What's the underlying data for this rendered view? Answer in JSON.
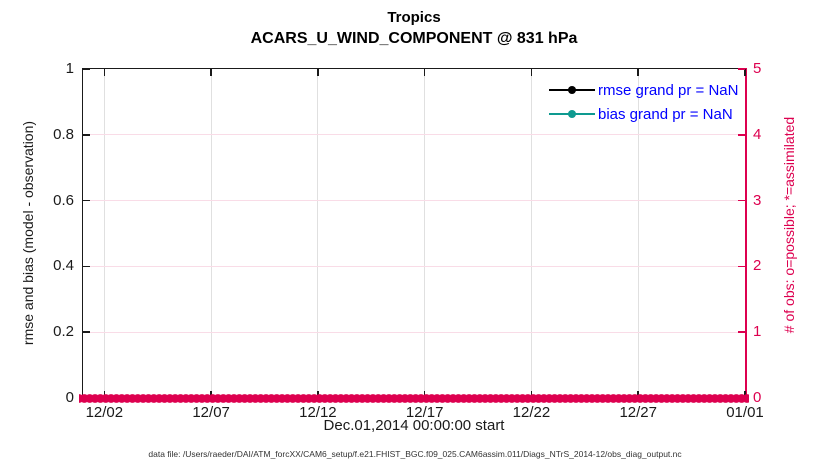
{
  "figure": {
    "title": "Tropics",
    "subtitle": "ACARS_U_WIND_COMPONENT @ 831 hPa",
    "xlabel": "Dec.01,2014 00:00:00 start",
    "ylabel_left": "rmse and bias (model - observation)",
    "ylabel_right": "# of obs: o=possible; *=assimilated",
    "footer": "data file: /Users/raeder/DAI/ATM_forcXX/CAM6_setup/f.e21.FHIST_BGC.f09_025.CAM6assim.011/Diags_NTrS_2014-12/obs_diag_output.nc"
  },
  "legend": {
    "items": [
      {
        "label": "rmse grand pr = NaN",
        "color": "#000000"
      },
      {
        "label": "bias grand pr = NaN",
        "color": "#0e9a90"
      }
    ],
    "text_color": "#0000ff"
  },
  "colors": {
    "axis_black": "#1a1a1a",
    "crimson": "#dd004f",
    "teal": "#0e9a90",
    "legend_blue": "#0000ff",
    "grid_gray": "#e0e0e0",
    "grid_pink": "#f9dce7",
    "footer_gray": "#333333"
  },
  "chart_data": {
    "type": "line",
    "title": "Tropics",
    "subtitle": "ACARS_U_WIND_COMPONENT @ 831 hPa",
    "xlabel": "Dec.01,2014 00:00:00 start",
    "ylabel_left": "rmse and bias (model - observation)",
    "ylabel_right": "# of obs: o=possible; *=assimilated",
    "grid": true,
    "legend_position": "top-right-inside",
    "x_axis": {
      "start": "Dec.01,2014 00:00:00",
      "end": "01/01",
      "span_days": 31,
      "ticks": [
        {
          "label": "12/02",
          "day": 1
        },
        {
          "label": "12/07",
          "day": 6
        },
        {
          "label": "12/12",
          "day": 11
        },
        {
          "label": "12/17",
          "day": 16
        },
        {
          "label": "12/22",
          "day": 21
        },
        {
          "label": "12/27",
          "day": 26
        },
        {
          "label": "01/01",
          "day": 31
        }
      ]
    },
    "y_left": {
      "lim": [
        0,
        1
      ],
      "tick_values": [
        0,
        0.2,
        0.4,
        0.6,
        0.8,
        1
      ],
      "tick_labels": [
        "0",
        "0.2",
        "0.4",
        "0.6",
        "0.8",
        "1"
      ]
    },
    "y_right": {
      "lim": [
        0,
        5
      ],
      "tick_values": [
        0,
        1,
        2,
        3,
        4,
        5
      ],
      "tick_labels": [
        "0",
        "1",
        "2",
        "3",
        "4",
        "5"
      ]
    },
    "series": [
      {
        "name": "rmse grand pr = NaN",
        "type": "line+marker",
        "color": "#000000",
        "values": [],
        "note": "all values NaN - no curve drawn"
      },
      {
        "name": "bias grand pr = NaN",
        "type": "line+marker",
        "color": "#0e9a90",
        "values": [],
        "note": "all values NaN - no curve drawn"
      },
      {
        "name": "# of obs possible (o) and assimilated (*)",
        "type": "marker-band",
        "color": "#dd004f",
        "y_right_value": 0,
        "cadence_hours": 6,
        "note": "dense overlapping markers at right-axis 0 spanning the full x-range"
      }
    ]
  }
}
